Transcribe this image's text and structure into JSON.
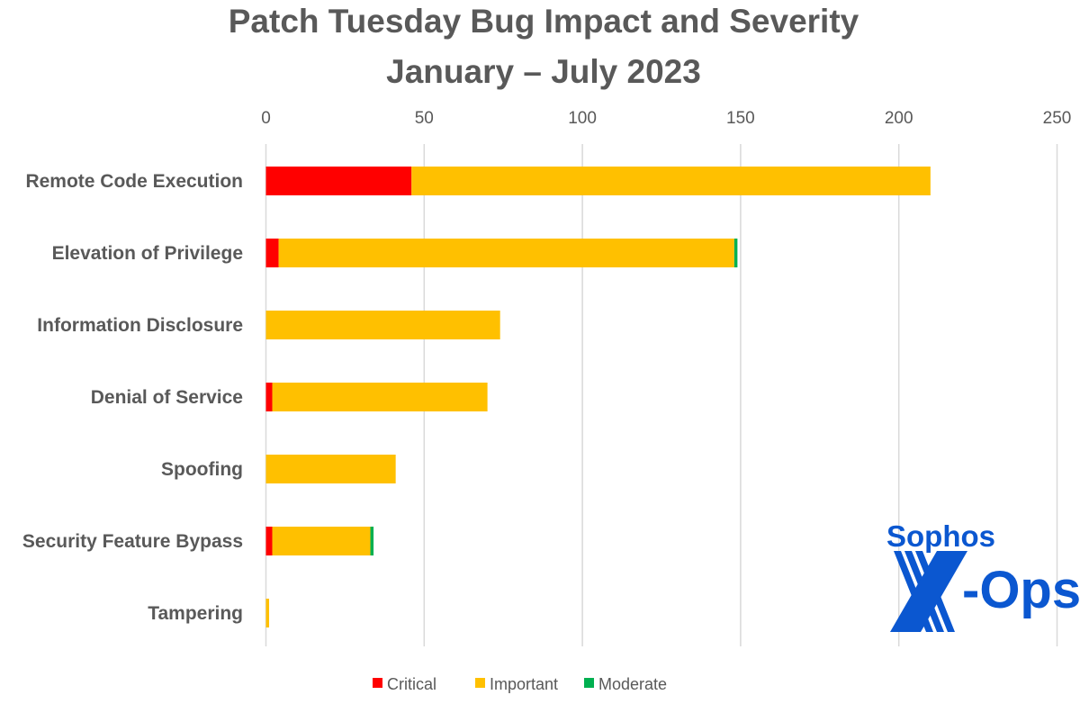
{
  "chart_data": {
    "type": "bar",
    "orientation": "horizontal",
    "stacked": true,
    "title": "Patch Tuesday Bug Impact and Severity",
    "subtitle": "January – July 2023",
    "xlabel": "",
    "ylabel": "",
    "xlim": [
      0,
      250
    ],
    "x_ticks": [
      0,
      50,
      100,
      150,
      200,
      250
    ],
    "x_tick_labels": [
      "0",
      "50",
      "100",
      "150",
      "200",
      "250"
    ],
    "x_axis_position": "top",
    "grid": true,
    "legend_position": "bottom",
    "categories": [
      "Remote Code Execution",
      "Elevation of Privilege",
      "Information Disclosure",
      "Denial of Service",
      "Spoofing",
      "Security Feature Bypass",
      "Tampering"
    ],
    "series": [
      {
        "name": "Critical",
        "color": "#ff0000",
        "values": [
          46,
          4,
          0,
          2,
          0,
          2,
          0
        ]
      },
      {
        "name": "Important",
        "color": "#ffc000",
        "values": [
          164,
          144,
          74,
          68,
          41,
          31,
          1
        ]
      },
      {
        "name": "Moderate",
        "color": "#00b050",
        "values": [
          0,
          1,
          0,
          0,
          0,
          1,
          0
        ]
      }
    ]
  },
  "logo": {
    "line1": "Sophos",
    "line2": "X-Ops",
    "color": "#0b57d0"
  }
}
